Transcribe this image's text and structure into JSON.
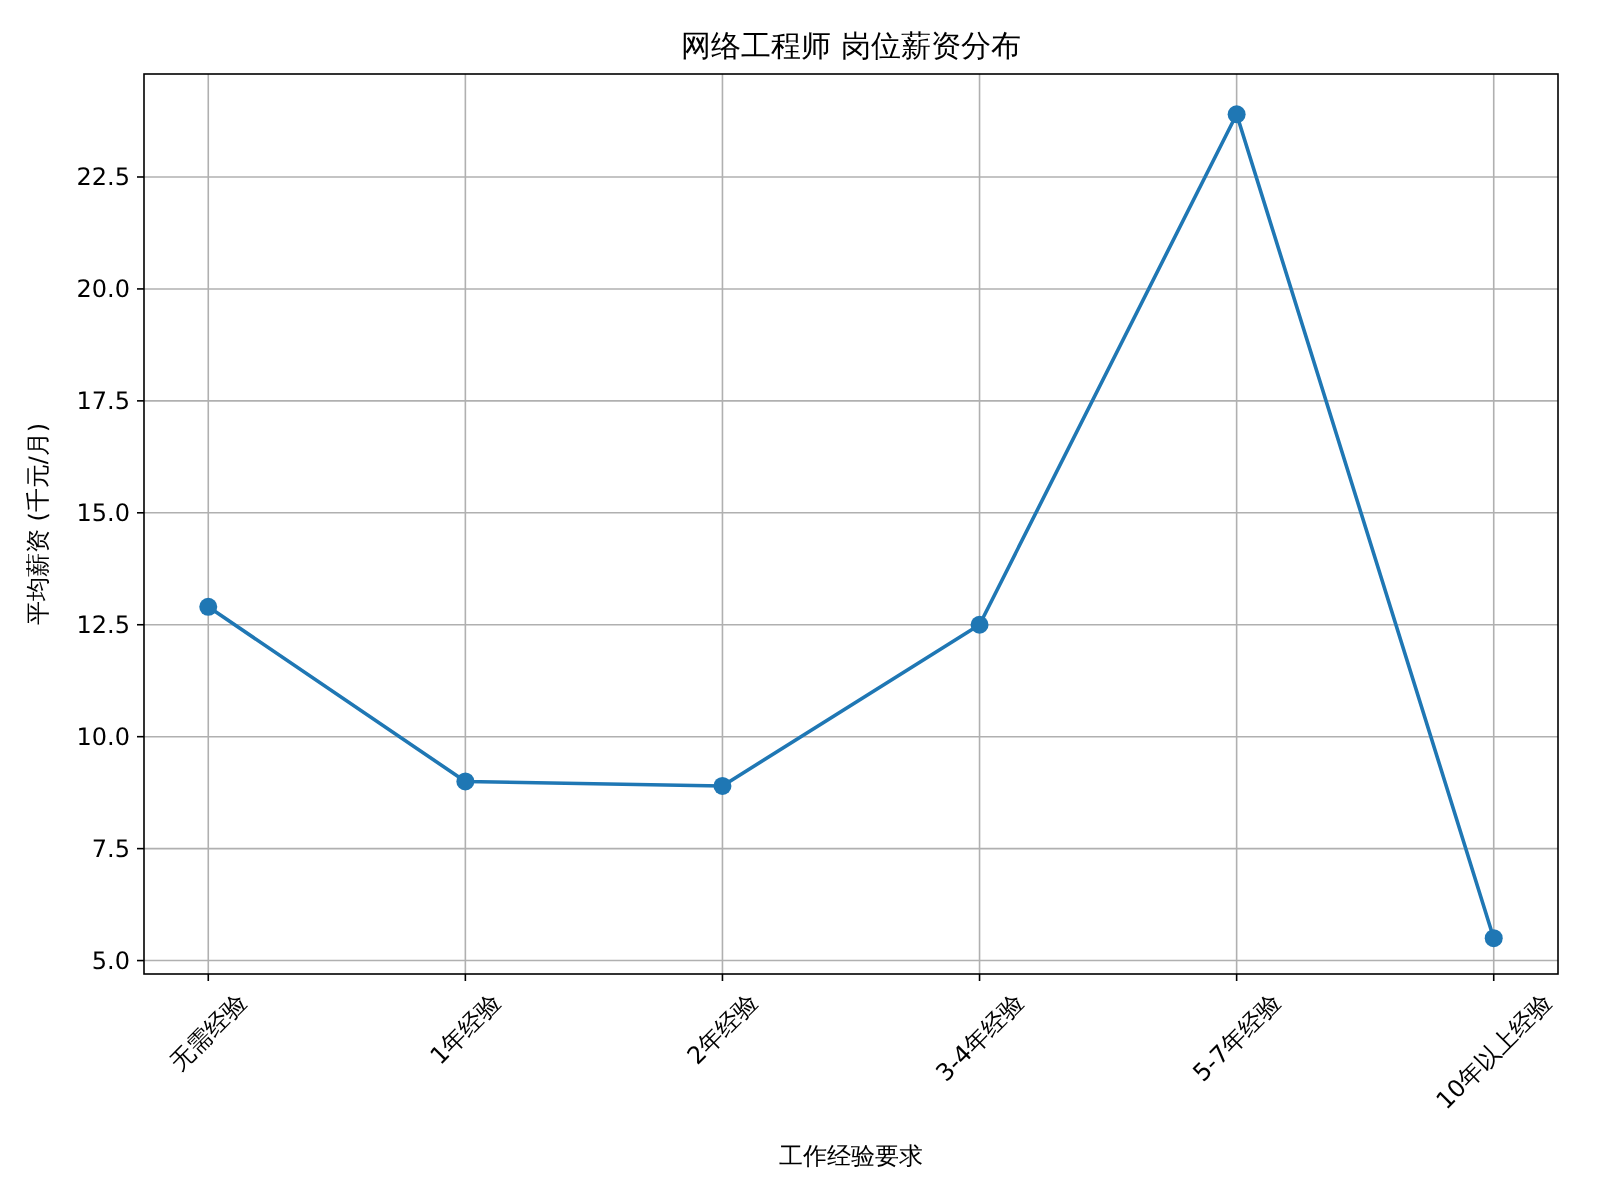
{
  "chart_data": {
    "type": "line",
    "title": "网络工程师 岗位薪资分布",
    "xlabel": "工作经验要求",
    "ylabel": "平均薪资 (千元/月)",
    "categories": [
      "无需经验",
      "1年经验",
      "2年经验",
      "3-4年经验",
      "5-7年经验",
      "10年以上经验"
    ],
    "series": [
      {
        "color": "#1f77b4",
        "values": [
          12.9,
          9.0,
          8.9,
          12.5,
          23.9,
          5.5
        ]
      }
    ],
    "ylim": [
      4.7,
      24.8
    ],
    "yticks": [
      {
        "value": 5,
        "label": "5.0"
      },
      7.5,
      {
        "value": 10,
        "label": "10.0"
      },
      12.5,
      {
        "value": 15,
        "label": "15.0"
      },
      17.5,
      {
        "value": 20,
        "label": "20.0"
      },
      22.5
    ],
    "grid": true,
    "marker": "circle"
  }
}
